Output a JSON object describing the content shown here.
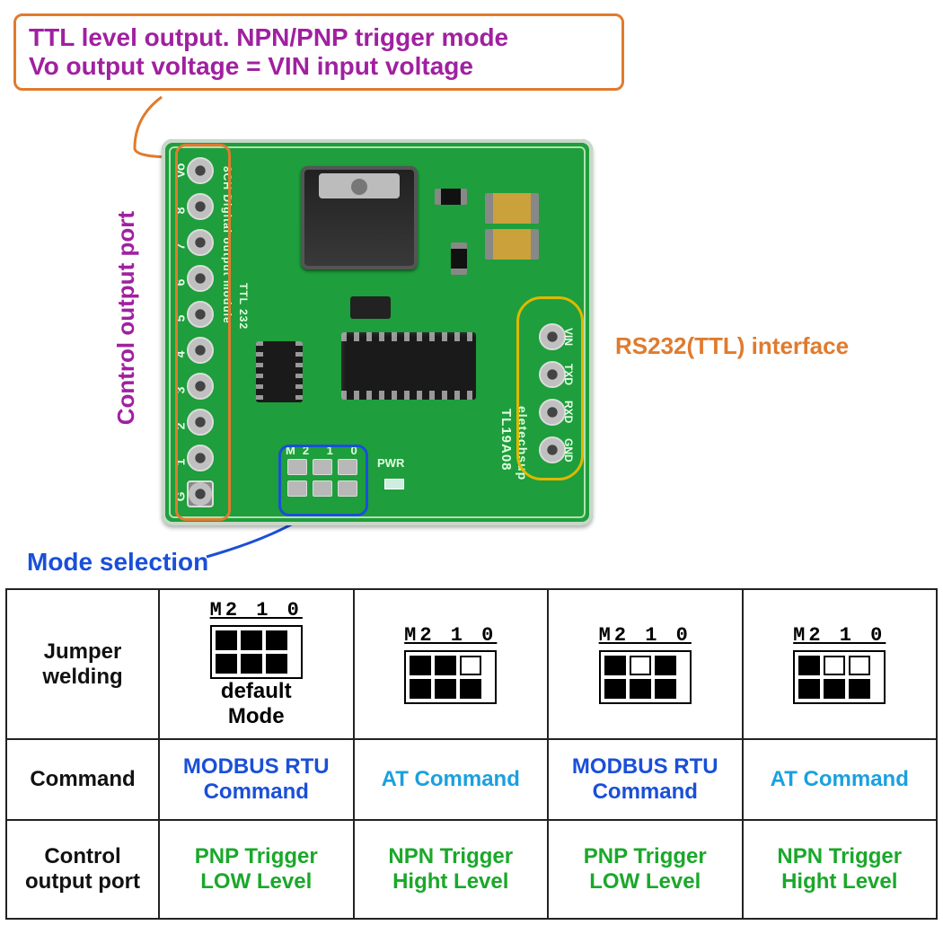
{
  "callout": {
    "line1": "TTL level output. NPN/PNP trigger mode",
    "line2": "Vo output voltage = VIN input voltage"
  },
  "pcb": {
    "output_pins": [
      "Vo",
      "8",
      "7",
      "6",
      "5",
      "4",
      "3",
      "2",
      "1",
      "G"
    ],
    "rs232_pins": [
      "VIN",
      "TXD",
      "RXD",
      "GND"
    ],
    "mode_header": "M2 1  0",
    "pwr": "PWR",
    "silk_a": "8CH Digital output module",
    "silk_b": "TTL 232",
    "silk_c": "eletechsup",
    "silk_d": "TL19A08",
    "board_color": "#1e9e3c"
  },
  "labels": {
    "control_port": "Control output port",
    "rs232": "RS232(TTL) interface",
    "mode_selection": "Mode selection"
  },
  "highlight_colors": {
    "orange": "#e07b2e",
    "blue": "#1a4fd8",
    "yellow": "#e0b800",
    "purple": "#a020a0"
  },
  "table": {
    "row_headers": [
      "Jumper welding",
      "Command",
      "Control output port"
    ],
    "jumper_label": "M2 1 0",
    "default_note": "default Mode",
    "columns": [
      {
        "pads": [
          1,
          1,
          1,
          1,
          1,
          1
        ],
        "default": true,
        "command": "MODBUS RTU Command",
        "command_style": "modbus",
        "trigger_line1": "PNP  Trigger",
        "trigger_line2": "LOW Level"
      },
      {
        "pads": [
          1,
          1,
          0,
          1,
          1,
          1
        ],
        "default": false,
        "command": "AT Command",
        "command_style": "at",
        "trigger_line1": "NPN  Trigger",
        "trigger_line2": "Hight Level"
      },
      {
        "pads": [
          1,
          0,
          1,
          1,
          1,
          1
        ],
        "default": false,
        "command": "MODBUS RTU Command",
        "command_style": "modbus",
        "trigger_line1": "PNP  Trigger",
        "trigger_line2": "LOW Level"
      },
      {
        "pads": [
          1,
          0,
          0,
          1,
          1,
          1
        ],
        "default": false,
        "command": "AT Command",
        "command_style": "at",
        "trigger_line1": "NPN  Trigger",
        "trigger_line2": "Hight Level"
      }
    ]
  }
}
